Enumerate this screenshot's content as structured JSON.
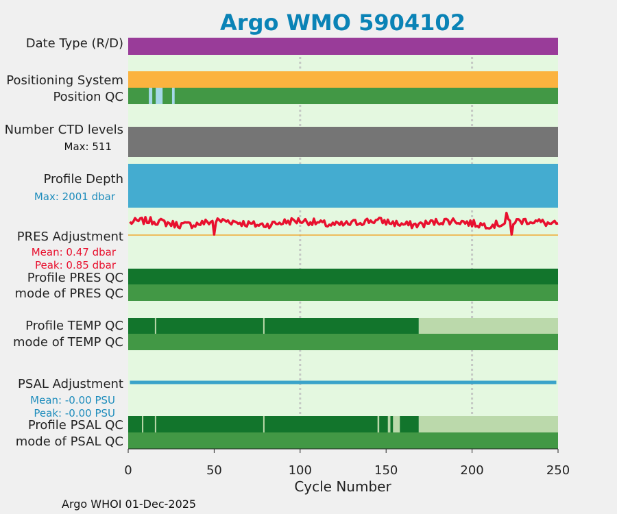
{
  "chart_data": {
    "type": "bar",
    "title": "Argo WMO 5904102",
    "xlabel": "Cycle Number",
    "xlim": [
      0,
      250
    ],
    "xticks": [
      0,
      50,
      100,
      150,
      200,
      250
    ],
    "footer": "Argo WHOI 01-Dec-2025",
    "grid": true,
    "rows": [
      {
        "label": "Date Type (R/D)",
        "segments": [
          [
            0,
            250,
            "#993c99"
          ]
        ]
      },
      {
        "label": "Positioning System",
        "segments": [
          [
            0,
            250,
            "#fbb33f"
          ]
        ]
      },
      {
        "label": "Position QC",
        "segments": [
          [
            0,
            250,
            "#429845"
          ],
          [
            12,
            14,
            "#a6d8ea"
          ],
          [
            16,
            20,
            "#a6d8ea"
          ],
          [
            25.5,
            27,
            "#a6d8ea"
          ]
        ]
      },
      {
        "label": "Number CTD levels",
        "note": "Max: 511",
        "segments": [
          [
            0,
            250,
            "#757575"
          ]
        ]
      },
      {
        "label": "Profile Depth",
        "note": "Max: 2001 dbar",
        "segments": [
          [
            0,
            250,
            "#44acd0"
          ]
        ]
      },
      {
        "label": "PRES Adjustment",
        "notes": [
          "Mean: 0.47 dbar",
          "Peak: 0.85 dbar"
        ]
      },
      {
        "label": "Profile PRES QC",
        "segments": [
          [
            0,
            250,
            "#12752c"
          ]
        ]
      },
      {
        "label": "mode of PRES QC",
        "segments": [
          [
            0,
            250,
            "#429845"
          ]
        ]
      },
      {
        "label": "Profile TEMP QC",
        "segments": [
          [
            0,
            169,
            "#12752c"
          ],
          [
            169,
            250,
            "#bbd9ab"
          ],
          [
            15.5,
            16.3,
            "#bbd9ab"
          ],
          [
            78.5,
            79.3,
            "#bbd9ab"
          ]
        ]
      },
      {
        "label": "mode of TEMP QC",
        "segments": [
          [
            0,
            250,
            "#429845"
          ]
        ]
      },
      {
        "label": "PSAL Adjustment",
        "notes": [
          "Mean: -0.00 PSU",
          "Peak: -0.00 PSU"
        ]
      },
      {
        "label": "Profile PSAL QC",
        "segments": [
          [
            0,
            169,
            "#12752c"
          ],
          [
            169,
            250,
            "#bbd9ab"
          ],
          [
            8,
            8.8,
            "#bbd9ab"
          ],
          [
            15.5,
            16.3,
            "#bbd9ab"
          ],
          [
            78.5,
            79.3,
            "#bbd9ab"
          ],
          [
            145,
            146,
            "#bbd9ab"
          ],
          [
            151,
            152.5,
            "#bbd9ab"
          ],
          [
            154,
            158,
            "#bbd9ab"
          ]
        ]
      },
      {
        "label": "mode of PSAL QC",
        "segments": [
          [
            0,
            250,
            "#429845"
          ]
        ]
      }
    ],
    "series": [
      {
        "name": "PRES adjustment",
        "color": "#e8102e",
        "mean": 0.47,
        "peak": 0.85
      },
      {
        "name": "PSAL adjustment",
        "color": "#3aa3c9",
        "mean": -0.0,
        "peak": -0.0
      }
    ]
  },
  "colors": {
    "title": "#0a83b6",
    "red_note": "#e8102e",
    "blue_note": "#1d8cbc",
    "background": "#e4f8e0",
    "pres_baseline": "#f0a830"
  }
}
